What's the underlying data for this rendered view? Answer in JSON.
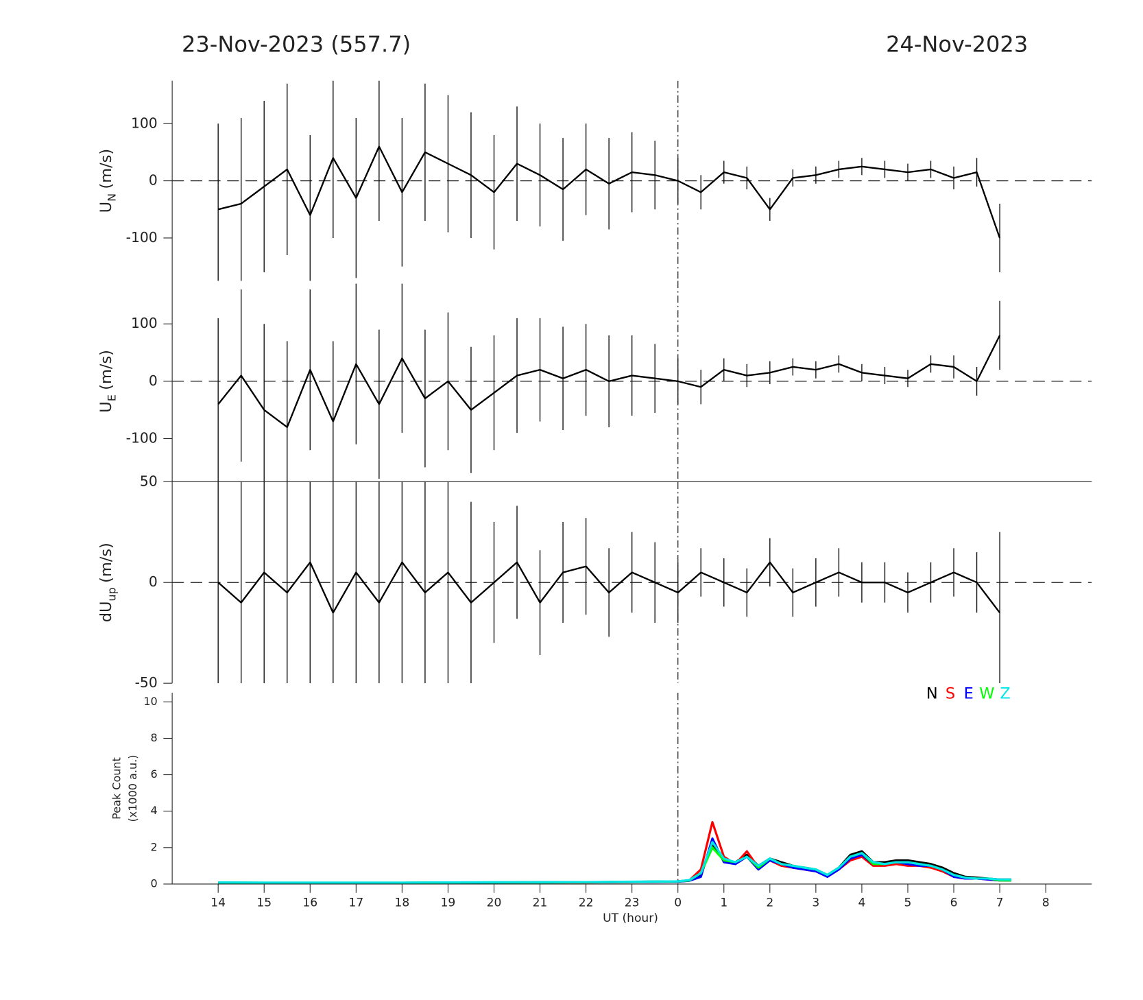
{
  "chart_data": [
    {
      "type": "errorbar",
      "title_left": "23-Nov-2023 (557.7)",
      "title_right": "24-Nov-2023",
      "ylabel": {
        "main": "U",
        "sub": "N",
        "unit": "(m/s)"
      },
      "xlim": [
        13,
        33
      ],
      "ylim": [
        -175,
        175
      ],
      "yticks": [
        -100,
        0,
        100
      ],
      "hline": 0,
      "vline": 24,
      "color": "#000000",
      "x": [
        14,
        14.5,
        15,
        15.5,
        16,
        16.5,
        17,
        17.5,
        18,
        18.5,
        19,
        19.5,
        20,
        20.5,
        21,
        21.5,
        22,
        22.5,
        23,
        23.5,
        24,
        24.5,
        25,
        25.5,
        26,
        26.5,
        27,
        27.5,
        28,
        28.5,
        29,
        29.5,
        30,
        30.5,
        31
      ],
      "values": [
        -50,
        -40,
        -10,
        20,
        -60,
        40,
        -30,
        60,
        -20,
        50,
        30,
        10,
        -20,
        30,
        10,
        -15,
        20,
        -5,
        15,
        10,
        0,
        -20,
        15,
        5,
        -50,
        5,
        10,
        20,
        25,
        20,
        15,
        20,
        5,
        15,
        -100
      ],
      "errors": [
        150,
        150,
        150,
        150,
        140,
        140,
        140,
        130,
        130,
        120,
        120,
        110,
        100,
        100,
        90,
        90,
        80,
        80,
        70,
        60,
        40,
        30,
        20,
        20,
        20,
        15,
        15,
        15,
        15,
        15,
        15,
        15,
        20,
        25,
        60
      ]
    },
    {
      "type": "errorbar",
      "ylabel": {
        "main": "U",
        "sub": "E",
        "unit": "(m/s)"
      },
      "xlim": [
        13,
        33
      ],
      "ylim": [
        -175,
        175
      ],
      "yticks": [
        -100,
        0,
        100
      ],
      "hline": 0,
      "vline": 24,
      "color": "#000000",
      "x": [
        14,
        14.5,
        15,
        15.5,
        16,
        16.5,
        17,
        17.5,
        18,
        18.5,
        19,
        19.5,
        20,
        20.5,
        21,
        21.5,
        22,
        22.5,
        23,
        23.5,
        24,
        24.5,
        25,
        25.5,
        26,
        26.5,
        27,
        27.5,
        28,
        28.5,
        29,
        29.5,
        30,
        30.5,
        31
      ],
      "values": [
        -40,
        10,
        -50,
        -80,
        20,
        -70,
        30,
        -40,
        40,
        -30,
        0,
        -50,
        -20,
        10,
        20,
        5,
        20,
        0,
        10,
        5,
        0,
        -10,
        20,
        10,
        15,
        25,
        20,
        30,
        15,
        10,
        5,
        30,
        25,
        0,
        80
      ],
      "errors": [
        150,
        150,
        150,
        150,
        140,
        140,
        140,
        130,
        130,
        120,
        120,
        110,
        100,
        100,
        90,
        90,
        80,
        80,
        70,
        60,
        40,
        30,
        20,
        20,
        20,
        15,
        15,
        15,
        15,
        15,
        15,
        15,
        20,
        25,
        60
      ]
    },
    {
      "type": "errorbar",
      "ylabel": {
        "main": "dU",
        "sub": "up",
        "unit": "(m/s)"
      },
      "xlim": [
        13,
        33
      ],
      "ylim": [
        -50,
        50
      ],
      "yticks": [
        -50,
        0,
        50
      ],
      "hline": 0,
      "vline": 24,
      "color": "#000000",
      "x": [
        14,
        14.5,
        15,
        15.5,
        16,
        16.5,
        17,
        17.5,
        18,
        18.5,
        19,
        19.5,
        20,
        20.5,
        21,
        21.5,
        22,
        22.5,
        23,
        23.5,
        24,
        24.5,
        25,
        25.5,
        26,
        26.5,
        27,
        27.5,
        28,
        28.5,
        29,
        29.5,
        30,
        30.5,
        31
      ],
      "values": [
        0,
        -10,
        5,
        -5,
        10,
        -15,
        5,
        -10,
        10,
        -5,
        5,
        -10,
        0,
        10,
        -10,
        5,
        8,
        -5,
        5,
        0,
        -5,
        5,
        0,
        -5,
        10,
        -5,
        0,
        5,
        0,
        0,
        -5,
        0,
        5,
        0,
        -15
      ],
      "errors": [
        80,
        80,
        80,
        80,
        80,
        75,
        75,
        70,
        70,
        65,
        60,
        50,
        30,
        28,
        26,
        25,
        24,
        22,
        20,
        20,
        15,
        12,
        12,
        12,
        12,
        12,
        12,
        12,
        10,
        10,
        10,
        10,
        12,
        15,
        40
      ]
    },
    {
      "type": "line",
      "ylabel": {
        "lines": [
          "Peak Count",
          "(x1000 a.u.)"
        ]
      },
      "xlabel": "UT (hour)",
      "legend": "upper right",
      "vline": 24,
      "xlim": [
        13,
        33
      ],
      "ylim": [
        0,
        10.5
      ],
      "yticks": [
        0,
        2,
        4,
        6,
        8,
        10
      ],
      "xticks": [
        14,
        15,
        16,
        17,
        18,
        19,
        20,
        21,
        22,
        23,
        {
          "value": 24,
          "label": "0"
        },
        {
          "value": 25,
          "label": "1"
        },
        {
          "value": 26,
          "label": "2"
        },
        {
          "value": 27,
          "label": "3"
        },
        {
          "value": 28,
          "label": "4"
        },
        {
          "value": 29,
          "label": "5"
        },
        {
          "value": 30,
          "label": "6"
        },
        {
          "value": 31,
          "label": "7"
        },
        {
          "value": 32,
          "label": "8"
        }
      ],
      "x": [
        14,
        15,
        16,
        17,
        18,
        19,
        20,
        21,
        22,
        23,
        24,
        24.25,
        24.5,
        24.75,
        25,
        25.25,
        25.5,
        25.75,
        26,
        26.25,
        26.5,
        26.75,
        27,
        27.25,
        27.5,
        27.75,
        28,
        28.25,
        28.5,
        28.75,
        29,
        29.25,
        29.5,
        29.75,
        30,
        30.25,
        30.5,
        30.75,
        31,
        31.25
      ],
      "series": [
        {
          "name": "N",
          "color": "#000000",
          "values": [
            0.08,
            0.07,
            0.07,
            0.07,
            0.07,
            0.08,
            0.09,
            0.1,
            0.1,
            0.12,
            0.15,
            0.2,
            0.5,
            2.2,
            1.3,
            1.2,
            1.6,
            1.0,
            1.4,
            1.2,
            1.0,
            0.9,
            0.8,
            0.5,
            0.9,
            1.6,
            1.8,
            1.2,
            1.2,
            1.3,
            1.3,
            1.2,
            1.1,
            0.9,
            0.6,
            0.4,
            0.35,
            0.3,
            0.25,
            0.25
          ]
        },
        {
          "name": "S",
          "color": "#ff0000",
          "values": [
            0.07,
            0.06,
            0.06,
            0.06,
            0.07,
            0.07,
            0.08,
            0.09,
            0.09,
            0.11,
            0.14,
            0.2,
            0.8,
            3.4,
            1.5,
            1.1,
            1.8,
            0.9,
            1.3,
            1.0,
            0.9,
            0.8,
            0.7,
            0.5,
            0.8,
            1.3,
            1.5,
            1.0,
            1.0,
            1.1,
            1.0,
            1.0,
            0.9,
            0.7,
            0.4,
            0.3,
            0.3,
            0.25,
            0.2,
            0.2
          ]
        },
        {
          "name": "E",
          "color": "#0000ff",
          "values": [
            0.07,
            0.07,
            0.06,
            0.06,
            0.07,
            0.07,
            0.08,
            0.09,
            0.1,
            0.11,
            0.13,
            0.18,
            0.4,
            2.5,
            1.2,
            1.1,
            1.5,
            0.8,
            1.3,
            1.1,
            0.9,
            0.8,
            0.7,
            0.4,
            0.8,
            1.4,
            1.6,
            1.1,
            1.1,
            1.2,
            1.1,
            1.0,
            1.0,
            0.8,
            0.4,
            0.3,
            0.3,
            0.25,
            0.2,
            0.2
          ]
        },
        {
          "name": "W",
          "color": "#00ff00",
          "values": [
            0.08,
            0.07,
            0.07,
            0.07,
            0.07,
            0.08,
            0.09,
            0.09,
            0.1,
            0.12,
            0.14,
            0.2,
            0.6,
            2.0,
            1.3,
            1.2,
            1.5,
            0.9,
            1.4,
            1.1,
            1.0,
            0.9,
            0.8,
            0.5,
            0.9,
            1.5,
            1.7,
            1.1,
            1.1,
            1.2,
            1.2,
            1.1,
            1.0,
            0.8,
            0.5,
            0.35,
            0.3,
            0.3,
            0.2,
            0.2
          ]
        },
        {
          "name": "Z",
          "color": "#00e5e5",
          "values": [
            0.09,
            0.08,
            0.08,
            0.08,
            0.08,
            0.09,
            0.1,
            0.1,
            0.11,
            0.13,
            0.15,
            0.22,
            0.6,
            2.3,
            1.4,
            1.2,
            1.5,
            1.0,
            1.4,
            1.1,
            1.0,
            0.9,
            0.8,
            0.5,
            0.9,
            1.5,
            1.7,
            1.2,
            1.1,
            1.2,
            1.2,
            1.1,
            1.0,
            0.8,
            0.5,
            0.35,
            0.3,
            0.3,
            0.25,
            0.25
          ]
        }
      ]
    }
  ]
}
